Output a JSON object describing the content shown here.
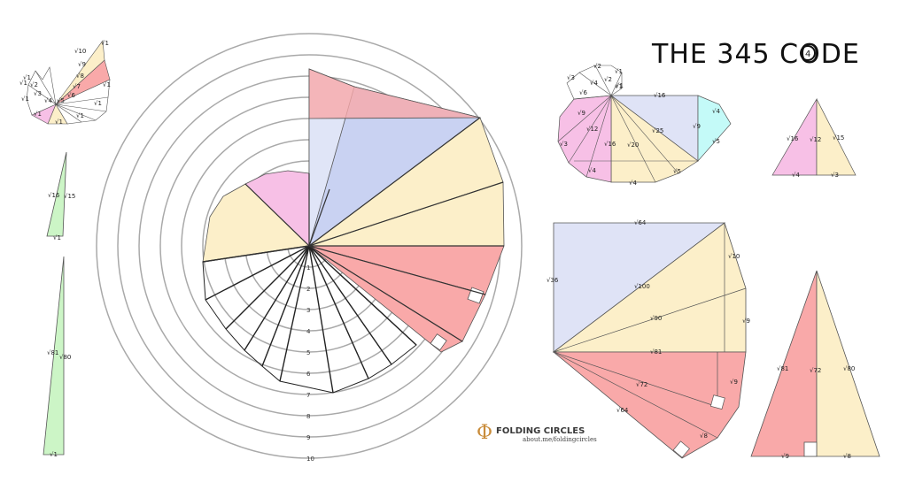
{
  "title": "THE 345 CODE",
  "brand": {
    "name": "FOLDING CIRCLES",
    "url": "about.me/foldingcircles",
    "logo_glyph": "Φ",
    "title_mark": "4"
  },
  "colors": {
    "red": "#f9a9a9",
    "blue": "#c9d2f2",
    "yellow": "#fcefc9",
    "pink": "#f7c0e6",
    "green": "#ccf5c6",
    "cyan": "#c4faf8",
    "stroke": "#555555",
    "ring": "#a9a9a9"
  },
  "ring_labels": [
    "1",
    "2",
    "3",
    "4",
    "5",
    "6",
    "7",
    "8",
    "9",
    "10"
  ],
  "labels": {
    "small_spiral": [
      "√1",
      "√10",
      "√9",
      "√8",
      "√7",
      "√6",
      "√5",
      "√4",
      "√3",
      "√2",
      "√1",
      "√1",
      "√1",
      "√1",
      "√1",
      "√1",
      "√1",
      "√1"
    ],
    "green_small": [
      "√16",
      "√15",
      "√1"
    ],
    "green_large": [
      "√81",
      "√80",
      "√1"
    ],
    "mid_spiral": [
      "√2",
      "√1",
      "√2",
      "√4",
      "√1",
      "√3",
      "√6",
      "√9",
      "√16",
      "√12",
      "√16",
      "√3",
      "√20",
      "√25",
      "√9",
      "√4",
      "√5",
      "√4",
      "√4",
      "√5",
      "√1"
    ],
    "mid_tri": [
      "√16",
      "√12",
      "√15",
      "√4",
      "√3"
    ],
    "big_fan": [
      "√64",
      "√36",
      "√10",
      "√100",
      "√90",
      "√9",
      "√81",
      "√72",
      "√9",
      "√64",
      "√8"
    ],
    "big_tri": [
      "√81",
      "√72",
      "√80",
      "√9",
      "√8"
    ]
  }
}
